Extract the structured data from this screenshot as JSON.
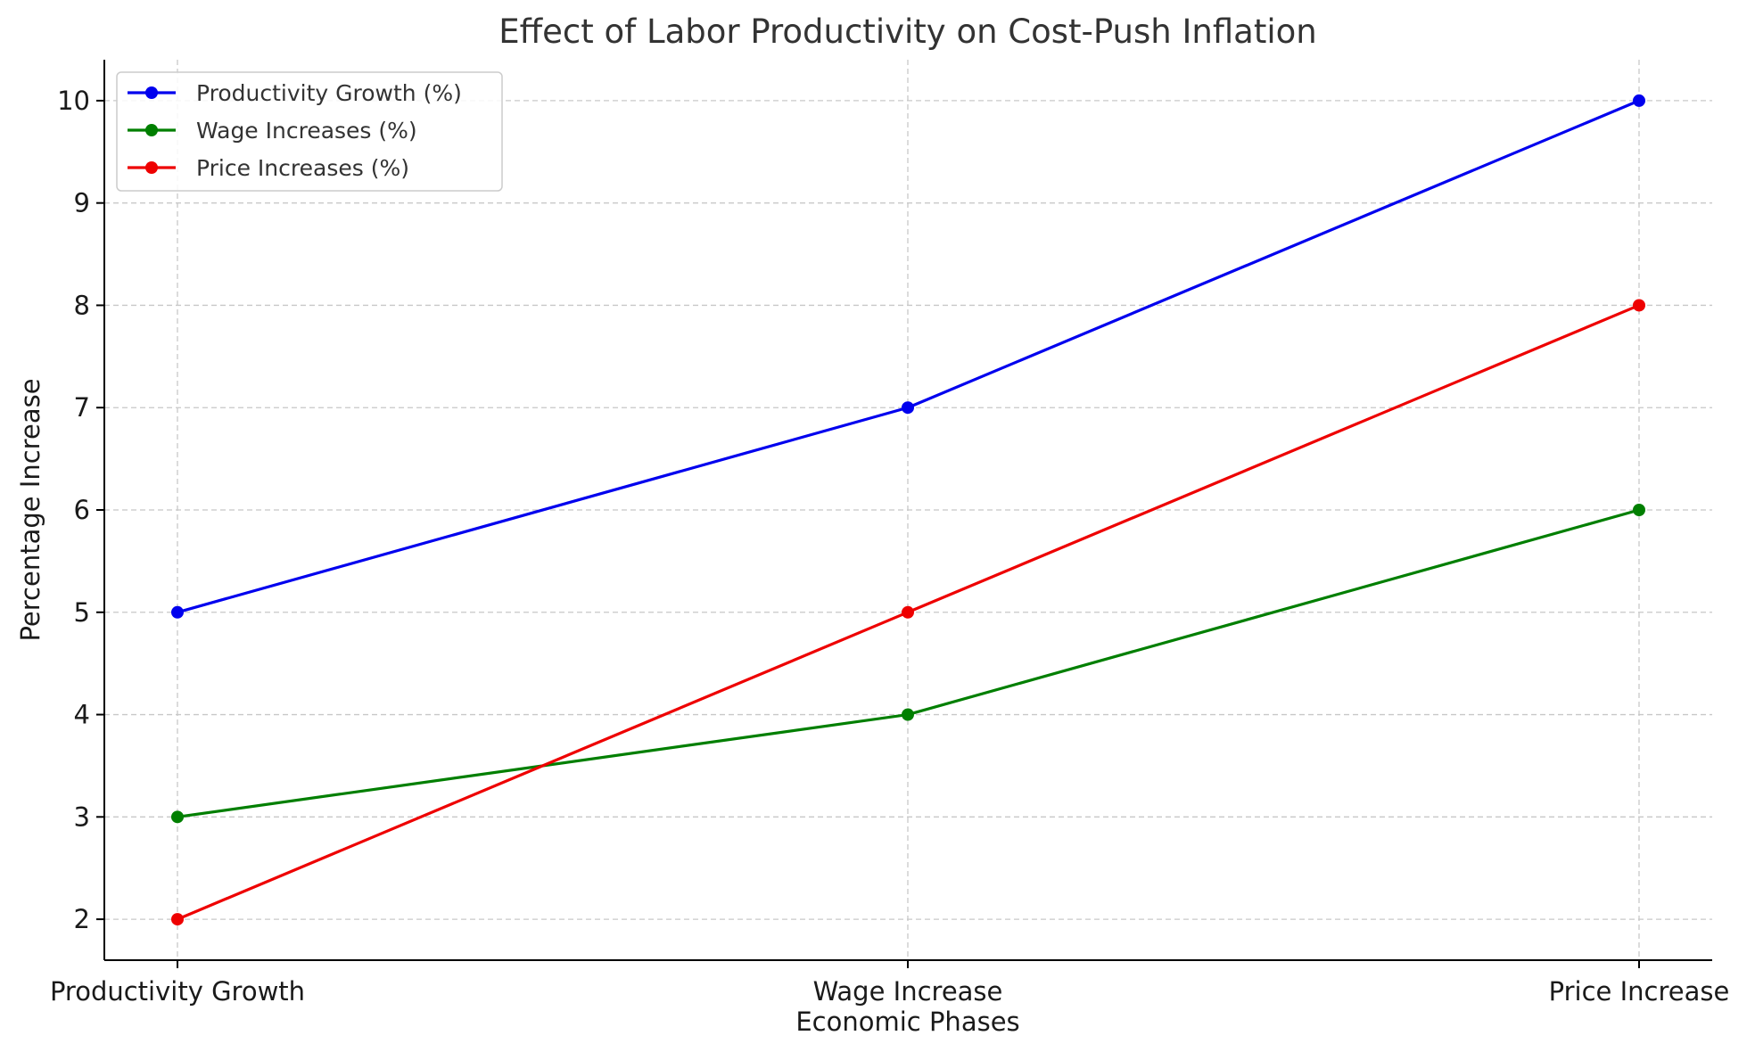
{
  "chart_data": {
    "type": "line",
    "title": "Effect of Labor Productivity on Cost-Push Inflation",
    "xlabel": "Economic Phases",
    "ylabel": "Percentage Increase",
    "categories": [
      "Productivity Growth",
      "Wage Increase",
      "Price Increase"
    ],
    "ylim": [
      1.6,
      10.4
    ],
    "yticks": [
      2,
      3,
      4,
      5,
      6,
      7,
      8,
      9,
      10
    ],
    "grid": true,
    "legend_position": "top-left",
    "series": [
      {
        "name": "Productivity Growth (%)",
        "values": [
          5,
          7,
          10
        ],
        "color": "#0000ee",
        "marker": "circle"
      },
      {
        "name": "Wage Increases (%)",
        "values": [
          3,
          4,
          6
        ],
        "color": "#007f00",
        "marker": "circle"
      },
      {
        "name": "Price Increases (%)",
        "values": [
          2,
          5,
          8
        ],
        "color": "#ee0000",
        "marker": "circle"
      }
    ]
  }
}
